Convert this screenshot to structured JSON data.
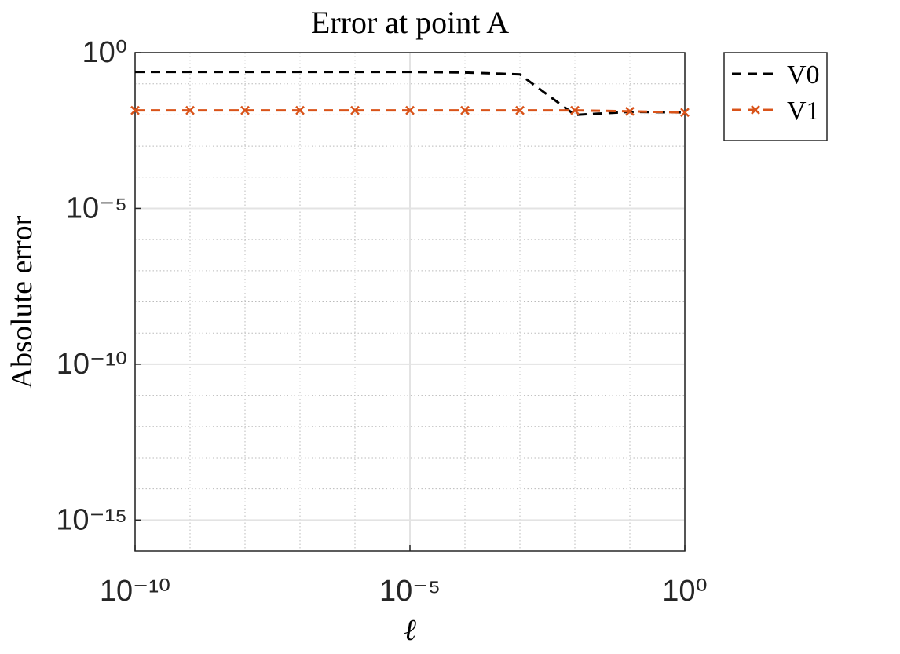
{
  "chart_data": {
    "type": "line",
    "title": "Error at point A",
    "xlabel": "ℓ",
    "ylabel": "Absolute error",
    "x": [
      1e-10,
      1e-09,
      1e-08,
      1e-07,
      1e-06,
      1e-05,
      0.0001,
      0.001,
      0.01,
      0.1,
      1
    ],
    "series": [
      {
        "name": "V0",
        "color": "#000000",
        "dash": true,
        "marker": "none",
        "values": [
          0.24,
          0.24,
          0.24,
          0.24,
          0.24,
          0.24,
          0.23,
          0.2,
          0.01,
          0.0125,
          0.012
        ]
      },
      {
        "name": "V1",
        "color": "#d95319",
        "dash": true,
        "marker": "x",
        "values": [
          0.014,
          0.014,
          0.014,
          0.014,
          0.014,
          0.014,
          0.014,
          0.014,
          0.014,
          0.013,
          0.012
        ]
      }
    ],
    "xscale": "log",
    "yscale": "log",
    "xlim": [
      1e-10,
      1
    ],
    "ylim": [
      1e-16,
      1
    ],
    "xticks": [
      {
        "value": 1e-10,
        "label": "10⁻¹⁰"
      },
      {
        "value": 1e-05,
        "label": "10⁻⁵"
      },
      {
        "value": 1,
        "label": "10⁰"
      }
    ],
    "yticks": [
      {
        "value": 1e-15,
        "label": "10⁻¹⁵"
      },
      {
        "value": 1e-10,
        "label": "10⁻¹⁰"
      },
      {
        "value": 1e-05,
        "label": "10⁻⁵"
      },
      {
        "value": 1,
        "label": "10⁰"
      }
    ],
    "grid": true,
    "minor_grid": true,
    "legend": "outside-right"
  }
}
